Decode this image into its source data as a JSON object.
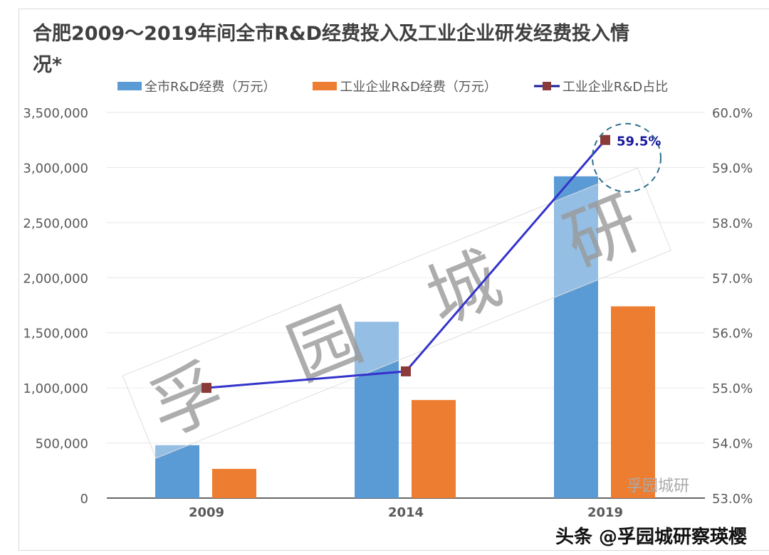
{
  "chart_data": {
    "type": "bar",
    "title": "合肥2009～2019年间全市R&D经费投入及工业企业研发经费投入情况*",
    "categories": [
      "2009",
      "2014",
      "2019"
    ],
    "series": [
      {
        "name": "全市R&D经费（万元）",
        "kind": "bar",
        "axis": "left",
        "color": "#5b9bd5",
        "values": [
          480000,
          1600000,
          2920000
        ]
      },
      {
        "name": "工业企业R&D经费（万元）",
        "kind": "bar",
        "axis": "left",
        "color": "#ed7d31",
        "values": [
          265000,
          890000,
          1740000
        ]
      },
      {
        "name": "工业企业R&D占比",
        "kind": "line",
        "axis": "right",
        "color": "#3333cc",
        "marker_color": "#8b3a3a",
        "values": [
          55.0,
          55.3,
          59.5
        ]
      }
    ],
    "left_axis": {
      "range": [
        0,
        3500000
      ],
      "ticks": [
        "0",
        "500,000",
        "1,000,000",
        "1,500,000",
        "2,000,000",
        "2,500,000",
        "3,000,000",
        "3,500,000"
      ]
    },
    "right_axis": {
      "range": [
        53,
        60
      ],
      "ticks": [
        "53.0%",
        "54.0%",
        "55.0%",
        "56.0%",
        "57.0%",
        "58.0%",
        "59.0%",
        "60.0%"
      ]
    },
    "annotation": "59.5%",
    "grid": true,
    "legend_placement": "top"
  },
  "watermark": {
    "band_text": [
      "孚",
      "园",
      "城",
      "研"
    ],
    "wechat": "孚园城研"
  },
  "footer": "头条 @孚园城研察瑛樱"
}
